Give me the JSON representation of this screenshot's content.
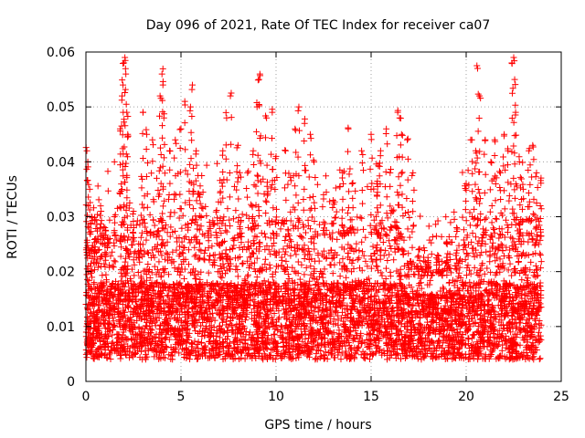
{
  "chart_data": {
    "type": "scatter",
    "title": "Day 096 of 2021, Rate Of TEC Index for receiver ca07",
    "xlabel": "GPS time / hours",
    "ylabel": "ROTI / TECUs",
    "xlim": [
      0,
      25
    ],
    "ylim": [
      0,
      0.06
    ],
    "x_ticks": [
      "0",
      "5",
      "10",
      "15",
      "20",
      "25"
    ],
    "y_ticks": [
      "0",
      "0.01",
      "0.02",
      "0.03",
      "0.04",
      "0.05",
      "0.06"
    ],
    "grid": true,
    "marker": "+",
    "color": "#ff0000",
    "series": [
      {
        "x_range": [
          0.0,
          23.95
        ],
        "points": [
          [
            0.05,
            0.042
          ],
          [
            0.1,
            0.04
          ],
          [
            0.2,
            0.035
          ],
          [
            0.3,
            0.03
          ],
          [
            0.5,
            0.026
          ],
          [
            0.8,
            0.031
          ],
          [
            1.0,
            0.028
          ],
          [
            1.5,
            0.03
          ],
          [
            1.8,
            0.046
          ],
          [
            1.9,
            0.052
          ],
          [
            1.95,
            0.054
          ],
          [
            2.0,
            0.058
          ],
          [
            2.05,
            0.059
          ],
          [
            2.1,
            0.056
          ],
          [
            2.15,
            0.049
          ],
          [
            2.2,
            0.045
          ],
          [
            2.5,
            0.031
          ],
          [
            3.0,
            0.049
          ],
          [
            3.2,
            0.045
          ],
          [
            3.5,
            0.044
          ],
          [
            3.9,
            0.052
          ],
          [
            4.0,
            0.056
          ],
          [
            4.05,
            0.054
          ],
          [
            4.1,
            0.048
          ],
          [
            4.4,
            0.042
          ],
          [
            4.7,
            0.044
          ],
          [
            5.0,
            0.046
          ],
          [
            5.2,
            0.051
          ],
          [
            5.5,
            0.05
          ],
          [
            5.6,
            0.054
          ],
          [
            5.8,
            0.042
          ],
          [
            6.0,
            0.034
          ],
          [
            6.5,
            0.029
          ],
          [
            7.2,
            0.042
          ],
          [
            7.4,
            0.048
          ],
          [
            7.6,
            0.052
          ],
          [
            8.0,
            0.043
          ],
          [
            8.5,
            0.038
          ],
          [
            8.8,
            0.042
          ],
          [
            9.0,
            0.05
          ],
          [
            9.1,
            0.055
          ],
          [
            9.15,
            0.056
          ],
          [
            9.5,
            0.048
          ],
          [
            9.8,
            0.049
          ],
          [
            10.0,
            0.041
          ],
          [
            10.5,
            0.042
          ],
          [
            11.0,
            0.046
          ],
          [
            11.2,
            0.05
          ],
          [
            11.5,
            0.047
          ],
          [
            11.8,
            0.045
          ],
          [
            12.0,
            0.04
          ],
          [
            12.5,
            0.034
          ],
          [
            13.0,
            0.033
          ],
          [
            13.5,
            0.038
          ],
          [
            13.8,
            0.046
          ],
          [
            14.0,
            0.036
          ],
          [
            14.5,
            0.042
          ],
          [
            15.0,
            0.045
          ],
          [
            15.3,
            0.036
          ],
          [
            15.5,
            0.042
          ],
          [
            15.8,
            0.046
          ],
          [
            16.0,
            0.038
          ],
          [
            16.4,
            0.049
          ],
          [
            16.5,
            0.048
          ],
          [
            16.6,
            0.045
          ],
          [
            16.9,
            0.044
          ],
          [
            17.2,
            0.038
          ],
          [
            17.5,
            0.024
          ],
          [
            18.0,
            0.022
          ],
          [
            18.5,
            0.023
          ],
          [
            19.0,
            0.025
          ],
          [
            19.5,
            0.028
          ],
          [
            20.0,
            0.036
          ],
          [
            20.3,
            0.044
          ],
          [
            20.5,
            0.042
          ],
          [
            20.6,
            0.057
          ],
          [
            20.7,
            0.052
          ],
          [
            21.0,
            0.044
          ],
          [
            21.3,
            0.04
          ],
          [
            21.5,
            0.044
          ],
          [
            21.8,
            0.038
          ],
          [
            22.0,
            0.045
          ],
          [
            22.2,
            0.042
          ],
          [
            22.4,
            0.058
          ],
          [
            22.5,
            0.059
          ],
          [
            22.55,
            0.055
          ],
          [
            22.6,
            0.049
          ],
          [
            22.8,
            0.04
          ],
          [
            23.0,
            0.035
          ],
          [
            23.3,
            0.042
          ],
          [
            23.5,
            0.043
          ],
          [
            23.7,
            0.038
          ],
          [
            23.9,
            0.032
          ]
        ]
      }
    ]
  }
}
